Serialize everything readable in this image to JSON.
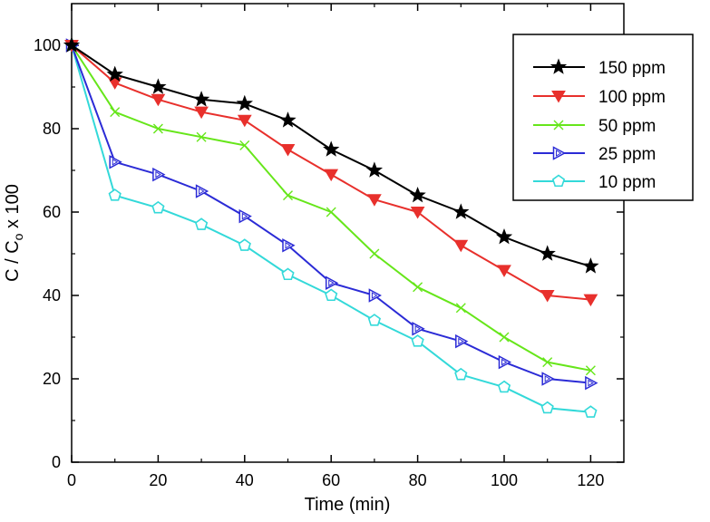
{
  "chart_data": {
    "type": "line",
    "title": "",
    "xlabel": "Time (min)",
    "ylabel_main": "C / C",
    "ylabel_sub": "o",
    "ylabel_tail": " x 100",
    "xlim": [
      0,
      125
    ],
    "ylim": [
      0,
      110
    ],
    "xticks": [
      0,
      20,
      40,
      60,
      80,
      100,
      120
    ],
    "yticks": [
      0,
      20,
      40,
      60,
      80,
      100
    ],
    "grid": false,
    "legend_position": "top-right",
    "x": [
      0,
      10,
      20,
      30,
      40,
      50,
      60,
      70,
      80,
      90,
      100,
      110,
      120
    ],
    "series": [
      {
        "name": "150 ppm",
        "color": "#000000",
        "fill": "#000000",
        "marker": "star",
        "values": [
          100,
          93,
          90,
          87,
          86,
          82,
          75,
          70,
          64,
          60,
          54,
          50,
          47
        ]
      },
      {
        "name": "100 ppm",
        "color": "#e8302c",
        "fill": "#e8302c",
        "marker": "triangle-down",
        "values": [
          100,
          91,
          87,
          84,
          82,
          75,
          69,
          63,
          60,
          52,
          46,
          40,
          39
        ]
      },
      {
        "name": "50 ppm",
        "color": "#66e61a",
        "fill": "none",
        "marker": "x",
        "values": [
          100,
          84,
          80,
          78,
          76,
          64,
          60,
          50,
          42,
          37,
          30,
          24,
          22
        ]
      },
      {
        "name": "25 ppm",
        "color": "#2b2bd6",
        "fill": "none",
        "marker": "triangle-right",
        "values": [
          100,
          72,
          69,
          65,
          59,
          52,
          43,
          40,
          32,
          29,
          24,
          20,
          19
        ]
      },
      {
        "name": "10 ppm",
        "color": "#33d9d9",
        "fill": "none",
        "marker": "pentagon",
        "values": [
          100,
          64,
          61,
          57,
          52,
          45,
          40,
          34,
          29,
          21,
          18,
          13,
          12
        ]
      }
    ]
  }
}
